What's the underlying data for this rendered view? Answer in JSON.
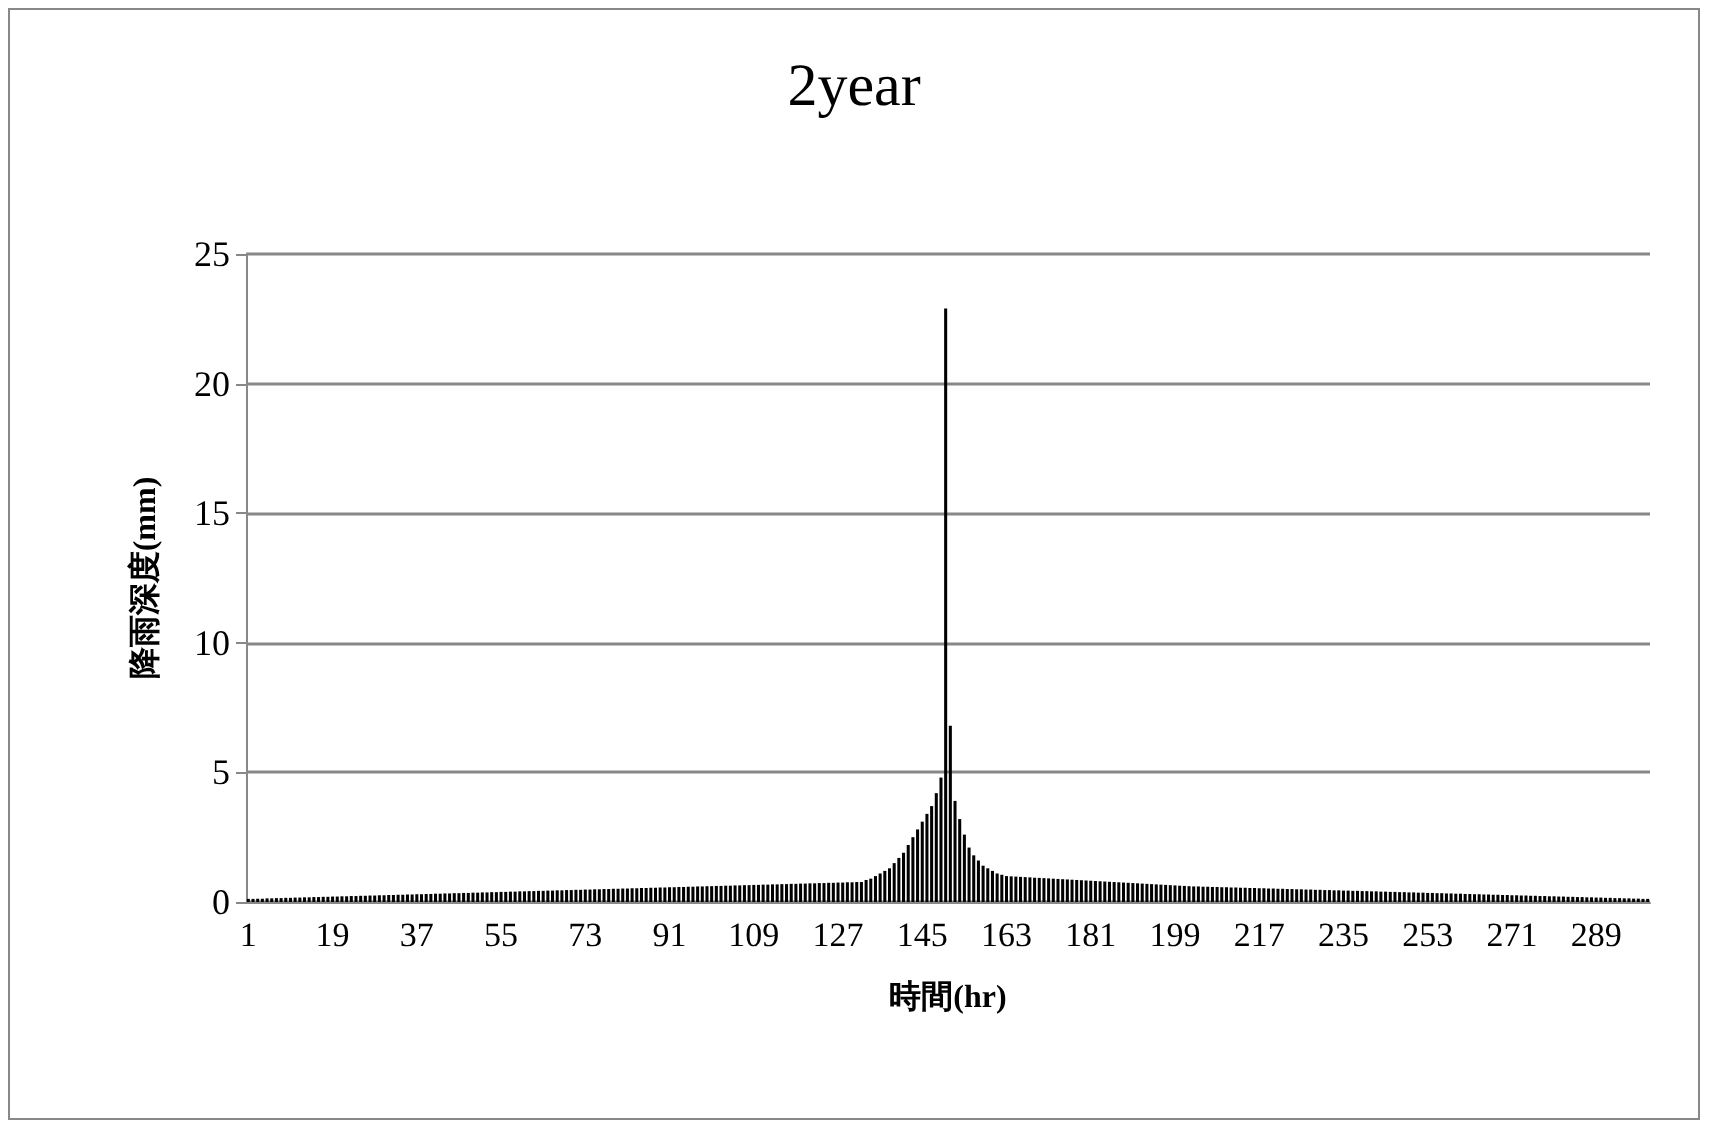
{
  "chart_data": {
    "type": "bar",
    "title": "2year",
    "xlabel": "時間(hr)",
    "ylabel": "降雨深度(mm)",
    "color": "#000000",
    "grid": "y",
    "ylim": [
      0,
      25
    ],
    "yticks": [
      0,
      5,
      10,
      15,
      20,
      25
    ],
    "categories": [
      "1",
      null,
      null,
      null,
      null,
      null,
      null,
      null,
      null,
      null,
      null,
      null,
      null,
      null,
      null,
      null,
      null,
      null,
      "19",
      null,
      null,
      null,
      null,
      null,
      null,
      null,
      null,
      null,
      null,
      null,
      null,
      null,
      null,
      null,
      null,
      null,
      "37",
      null,
      null,
      null,
      null,
      null,
      null,
      null,
      null,
      null,
      null,
      null,
      null,
      null,
      null,
      null,
      null,
      null,
      "55",
      null,
      null,
      null,
      null,
      null,
      null,
      null,
      null,
      null,
      null,
      null,
      null,
      null,
      null,
      null,
      null,
      null,
      "73",
      null,
      null,
      null,
      null,
      null,
      null,
      null,
      null,
      null,
      null,
      null,
      null,
      null,
      null,
      null,
      null,
      null,
      "91",
      null,
      null,
      null,
      null,
      null,
      null,
      null,
      null,
      null,
      null,
      null,
      null,
      null,
      null,
      null,
      null,
      null,
      "109",
      null,
      null,
      null,
      null,
      null,
      null,
      null,
      null,
      null,
      null,
      null,
      null,
      null,
      null,
      null,
      null,
      null,
      "127",
      null,
      null,
      null,
      null,
      null,
      null,
      null,
      null,
      null,
      null,
      null,
      null,
      null,
      null,
      null,
      null,
      null,
      "145",
      null,
      null,
      null,
      null,
      null,
      null,
      null,
      null,
      null,
      null,
      null,
      null,
      null,
      null,
      null,
      null,
      null,
      "163",
      null,
      null,
      null,
      null,
      null,
      null,
      null,
      null,
      null,
      null,
      null,
      null,
      null,
      null,
      null,
      null,
      null,
      "181",
      null,
      null,
      null,
      null,
      null,
      null,
      null,
      null,
      null,
      null,
      null,
      null,
      null,
      null,
      null,
      null,
      null,
      "199",
      null,
      null,
      null,
      null,
      null,
      null,
      null,
      null,
      null,
      null,
      null,
      null,
      null,
      null,
      null,
      null,
      null,
      "217",
      null,
      null,
      null,
      null,
      null,
      null,
      null,
      null,
      null,
      null,
      null,
      null,
      null,
      null,
      null,
      null,
      null,
      "235",
      null,
      null,
      null,
      null,
      null,
      null,
      null,
      null,
      null,
      null,
      null,
      null,
      null,
      null,
      null,
      null,
      null,
      "253",
      null,
      null,
      null,
      null,
      null,
      null,
      null,
      null,
      null,
      null,
      null,
      null,
      null,
      null,
      null,
      null,
      null,
      "271",
      null,
      null,
      null,
      null,
      null,
      null,
      null,
      null,
      null,
      null,
      null,
      null,
      null,
      null,
      null,
      null,
      null,
      "289",
      null,
      null,
      null,
      null,
      null,
      null,
      null,
      null,
      null,
      null,
      null
    ],
    "values": [
      0.12,
      0.12,
      0.13,
      0.13,
      0.14,
      0.14,
      0.15,
      0.15,
      0.16,
      0.16,
      0.17,
      0.17,
      0.18,
      0.18,
      0.19,
      0.19,
      0.2,
      0.2,
      0.21,
      0.21,
      0.22,
      0.22,
      0.23,
      0.23,
      0.24,
      0.24,
      0.25,
      0.25,
      0.26,
      0.26,
      0.27,
      0.27,
      0.28,
      0.28,
      0.29,
      0.29,
      0.3,
      0.3,
      0.31,
      0.31,
      0.32,
      0.32,
      0.33,
      0.33,
      0.34,
      0.34,
      0.35,
      0.35,
      0.36,
      0.36,
      0.37,
      0.37,
      0.38,
      0.38,
      0.39,
      0.39,
      0.4,
      0.4,
      0.41,
      0.41,
      0.42,
      0.42,
      0.43,
      0.43,
      0.44,
      0.44,
      0.45,
      0.45,
      0.46,
      0.46,
      0.47,
      0.47,
      0.48,
      0.48,
      0.49,
      0.49,
      0.5,
      0.5,
      0.51,
      0.51,
      0.52,
      0.52,
      0.53,
      0.53,
      0.54,
      0.54,
      0.55,
      0.55,
      0.56,
      0.56,
      0.57,
      0.57,
      0.58,
      0.58,
      0.59,
      0.59,
      0.6,
      0.6,
      0.61,
      0.61,
      0.62,
      0.62,
      0.63,
      0.63,
      0.64,
      0.64,
      0.65,
      0.65,
      0.66,
      0.66,
      0.67,
      0.67,
      0.68,
      0.68,
      0.69,
      0.69,
      0.7,
      0.7,
      0.71,
      0.71,
      0.72,
      0.72,
      0.73,
      0.73,
      0.74,
      0.74,
      0.75,
      0.75,
      0.76,
      0.76,
      0.77,
      0.77,
      0.85,
      0.9,
      1.0,
      1.1,
      1.2,
      1.3,
      1.5,
      1.7,
      1.9,
      2.2,
      2.5,
      2.8,
      3.1,
      3.4,
      3.7,
      4.2,
      4.8,
      22.9,
      6.8,
      3.9,
      3.2,
      2.6,
      2.1,
      1.8,
      1.6,
      1.4,
      1.3,
      1.2,
      1.1,
      1.05,
      1.0,
      0.99,
      0.98,
      0.97,
      0.96,
      0.95,
      0.94,
      0.93,
      0.92,
      0.91,
      0.9,
      0.89,
      0.88,
      0.87,
      0.86,
      0.85,
      0.84,
      0.83,
      0.82,
      0.81,
      0.8,
      0.79,
      0.78,
      0.77,
      0.76,
      0.75,
      0.74,
      0.73,
      0.72,
      0.71,
      0.7,
      0.69,
      0.68,
      0.67,
      0.66,
      0.65,
      0.64,
      0.63,
      0.62,
      0.61,
      0.6,
      0.6,
      0.59,
      0.59,
      0.58,
      0.58,
      0.57,
      0.57,
      0.56,
      0.56,
      0.55,
      0.55,
      0.54,
      0.54,
      0.53,
      0.53,
      0.52,
      0.52,
      0.51,
      0.51,
      0.5,
      0.5,
      0.49,
      0.49,
      0.48,
      0.48,
      0.47,
      0.47,
      0.46,
      0.46,
      0.45,
      0.45,
      0.44,
      0.44,
      0.43,
      0.43,
      0.42,
      0.42,
      0.41,
      0.41,
      0.4,
      0.4,
      0.39,
      0.39,
      0.38,
      0.38,
      0.37,
      0.37,
      0.36,
      0.36,
      0.35,
      0.35,
      0.34,
      0.34,
      0.33,
      0.33,
      0.32,
      0.32,
      0.31,
      0.31,
      0.3,
      0.3,
      0.29,
      0.29,
      0.28,
      0.28,
      0.27,
      0.27,
      0.26,
      0.26,
      0.25,
      0.25,
      0.24,
      0.24,
      0.23,
      0.23,
      0.22,
      0.22,
      0.21,
      0.21,
      0.2,
      0.2,
      0.19,
      0.19,
      0.18,
      0.18,
      0.17,
      0.17,
      0.16,
      0.16,
      0.15,
      0.15,
      0.14,
      0.14,
      0.13,
      0.13,
      0.12,
      0.12
    ]
  }
}
